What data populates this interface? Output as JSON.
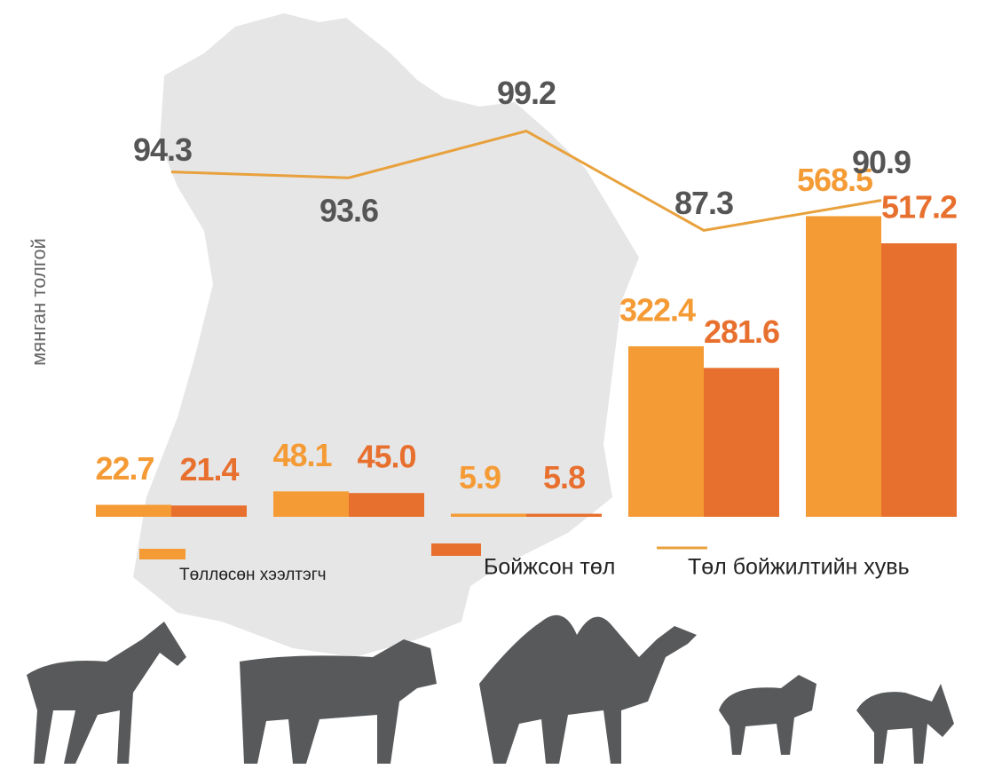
{
  "chart_data": {
    "type": "bar_line",
    "y_label": "мянган толгой",
    "categories": [
      null,
      null,
      null,
      null,
      null
    ],
    "series": [
      {
        "name": "Төллөсөн хээлтэгч",
        "color": "#f59b35",
        "values": [
          22.7,
          48.1,
          5.9,
          322.4,
          568.5
        ]
      },
      {
        "name": "Бойжсон төл",
        "color": "#e8702f",
        "values": [
          21.4,
          45,
          5.8,
          281.6,
          517.2
        ],
        "value_labels": [
          "21.4",
          "45.0",
          "5.8",
          "281.6",
          "517.2"
        ]
      },
      {
        "name": "Төл бойжилтийн хувь",
        "type": "line",
        "axis": "y2",
        "color": "#e8a13c",
        "values": [
          94.3,
          93.6,
          99.2,
          87.3,
          90.9
        ]
      }
    ],
    "ylim": [
      0,
      900
    ],
    "y2lim": [
      53,
      110
    ]
  }
}
